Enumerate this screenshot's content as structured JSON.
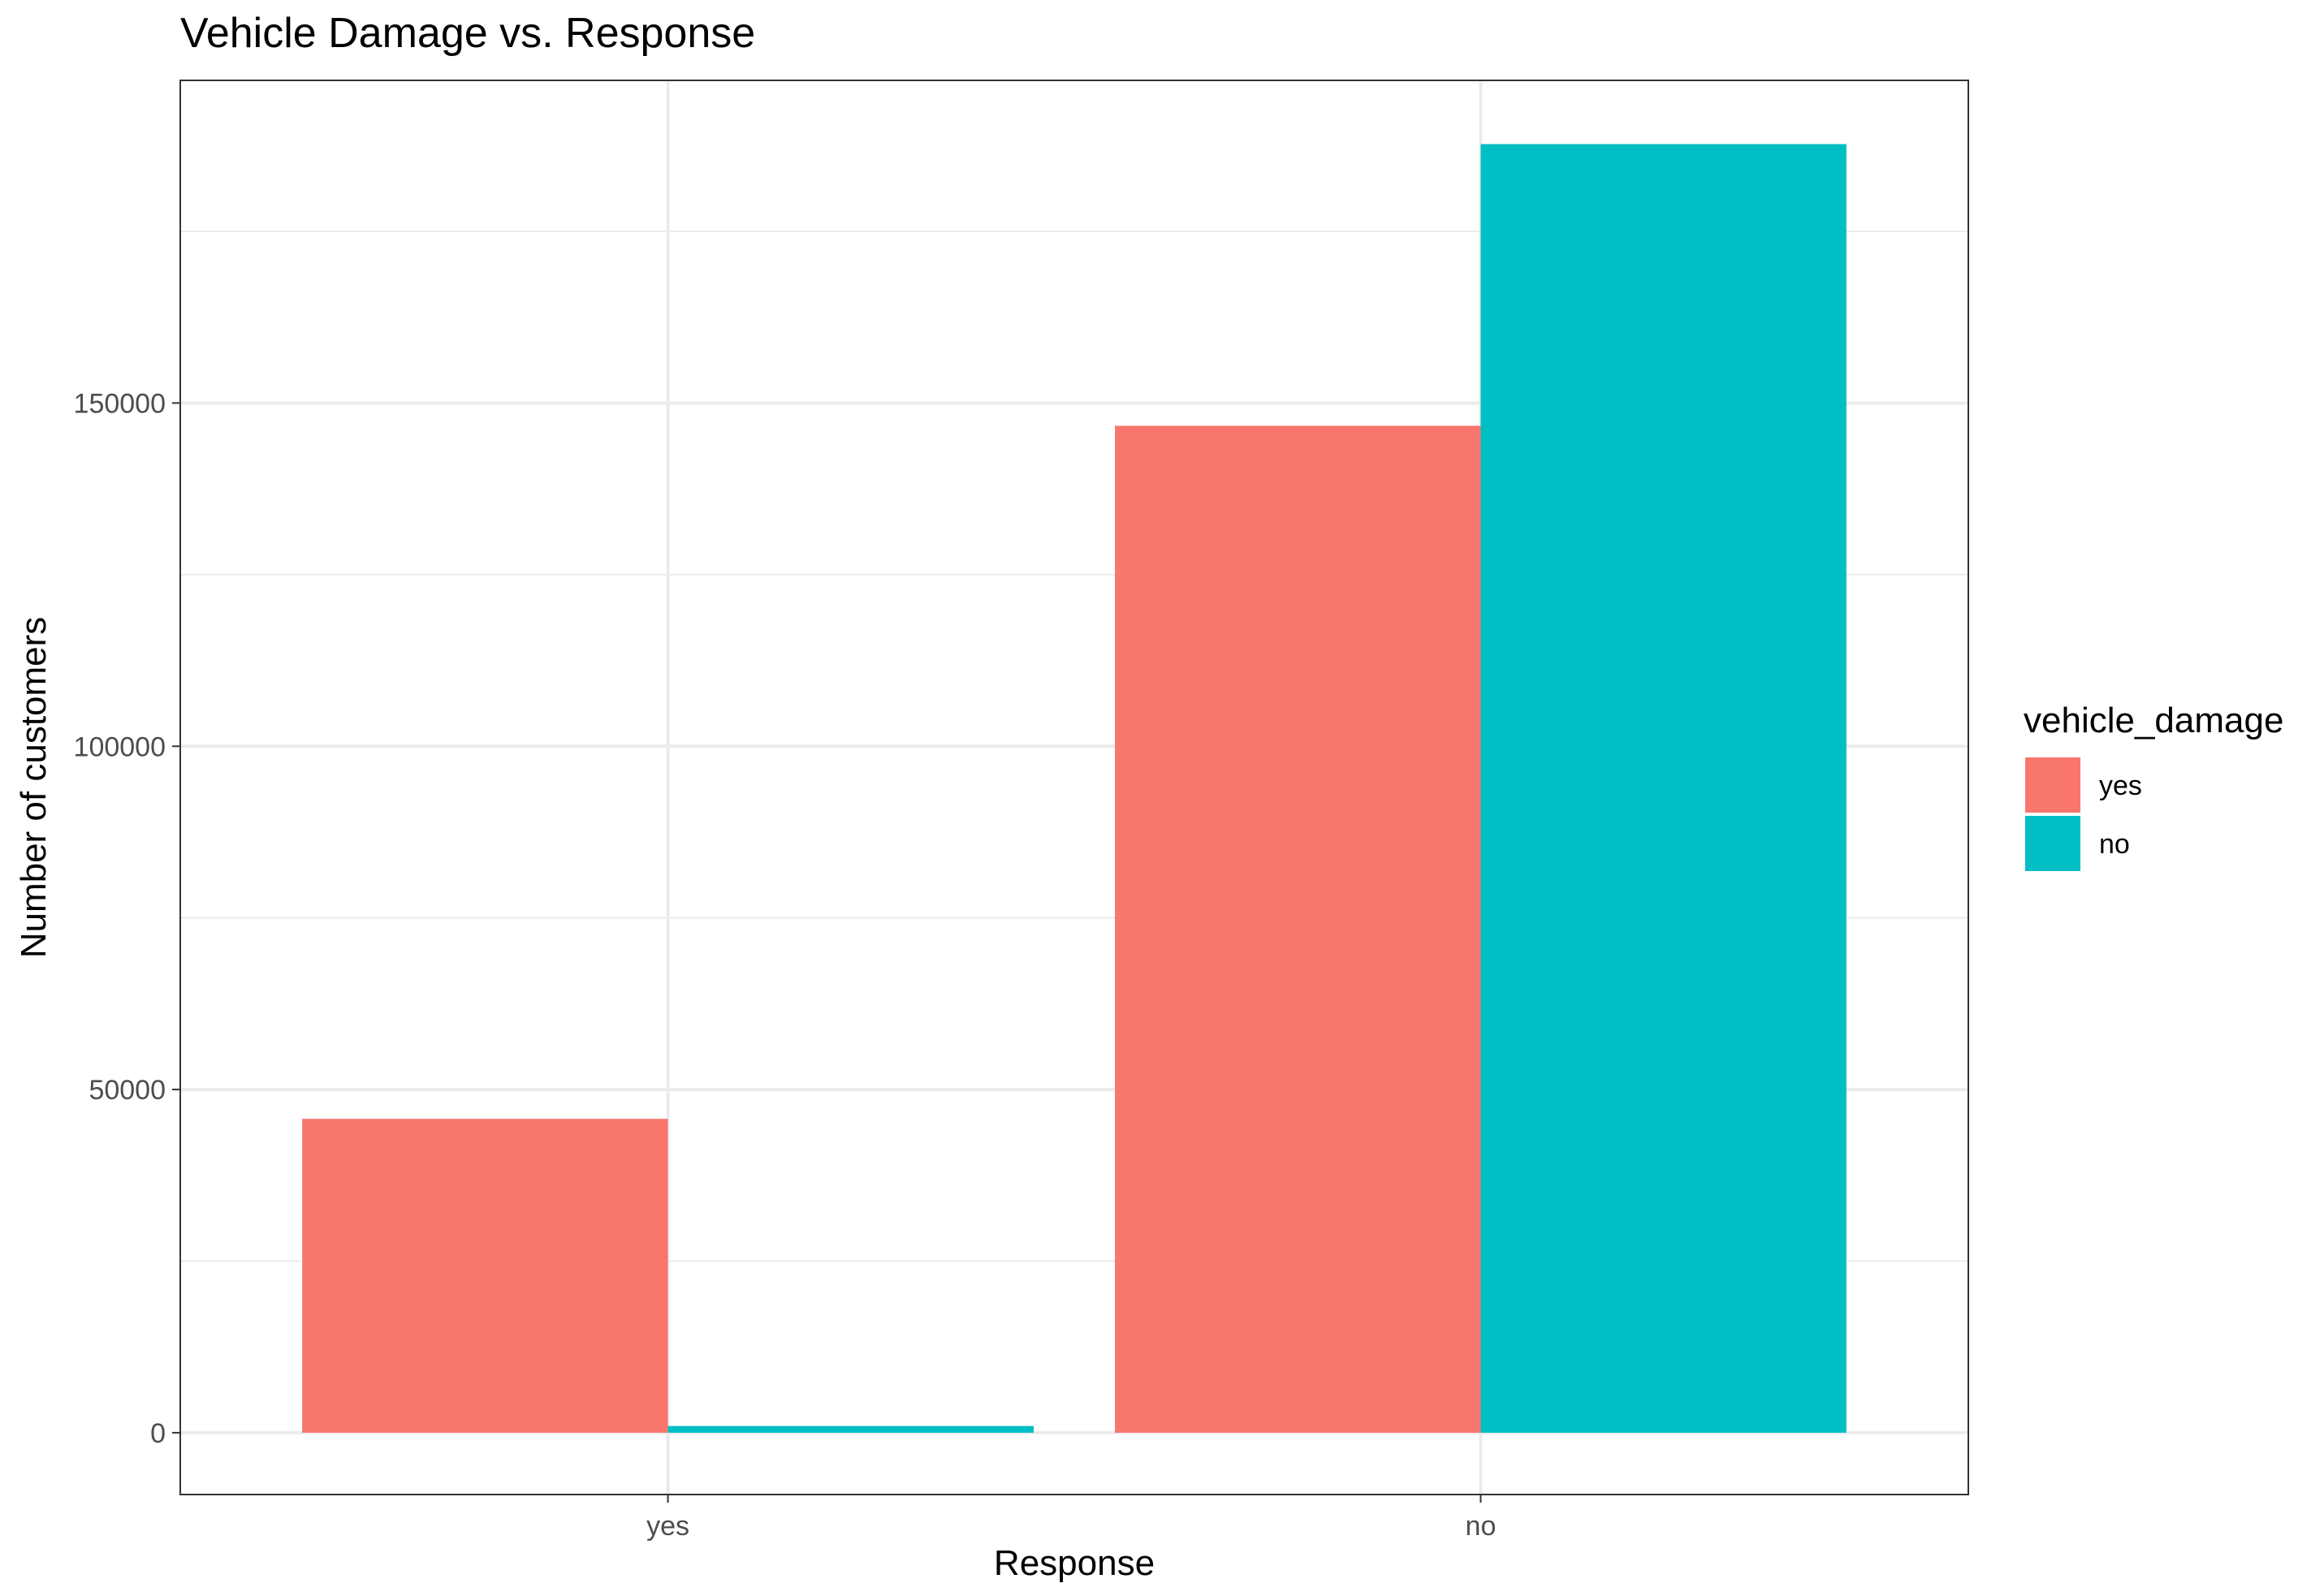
{
  "chart_data": {
    "type": "bar",
    "title": "Vehicle Damage vs. Response",
    "xlabel": "Response",
    "ylabel": "Number of customers",
    "categories": [
      "yes",
      "no"
    ],
    "series": [
      {
        "name": "yes",
        "values": [
          45728,
          146685
        ],
        "color": "#F8766D"
      },
      {
        "name": "no",
        "values": [
          982,
          187714
        ],
        "color": "#00BFC4"
      }
    ],
    "ylim": [
      -9000,
      197000
    ],
    "yticks": [
      0,
      50000,
      100000,
      150000
    ],
    "ytick_labels": [
      "0",
      "50000",
      "100000",
      "150000"
    ],
    "grid": true,
    "legend": {
      "title": "vehicle_damage",
      "position": "right"
    }
  }
}
